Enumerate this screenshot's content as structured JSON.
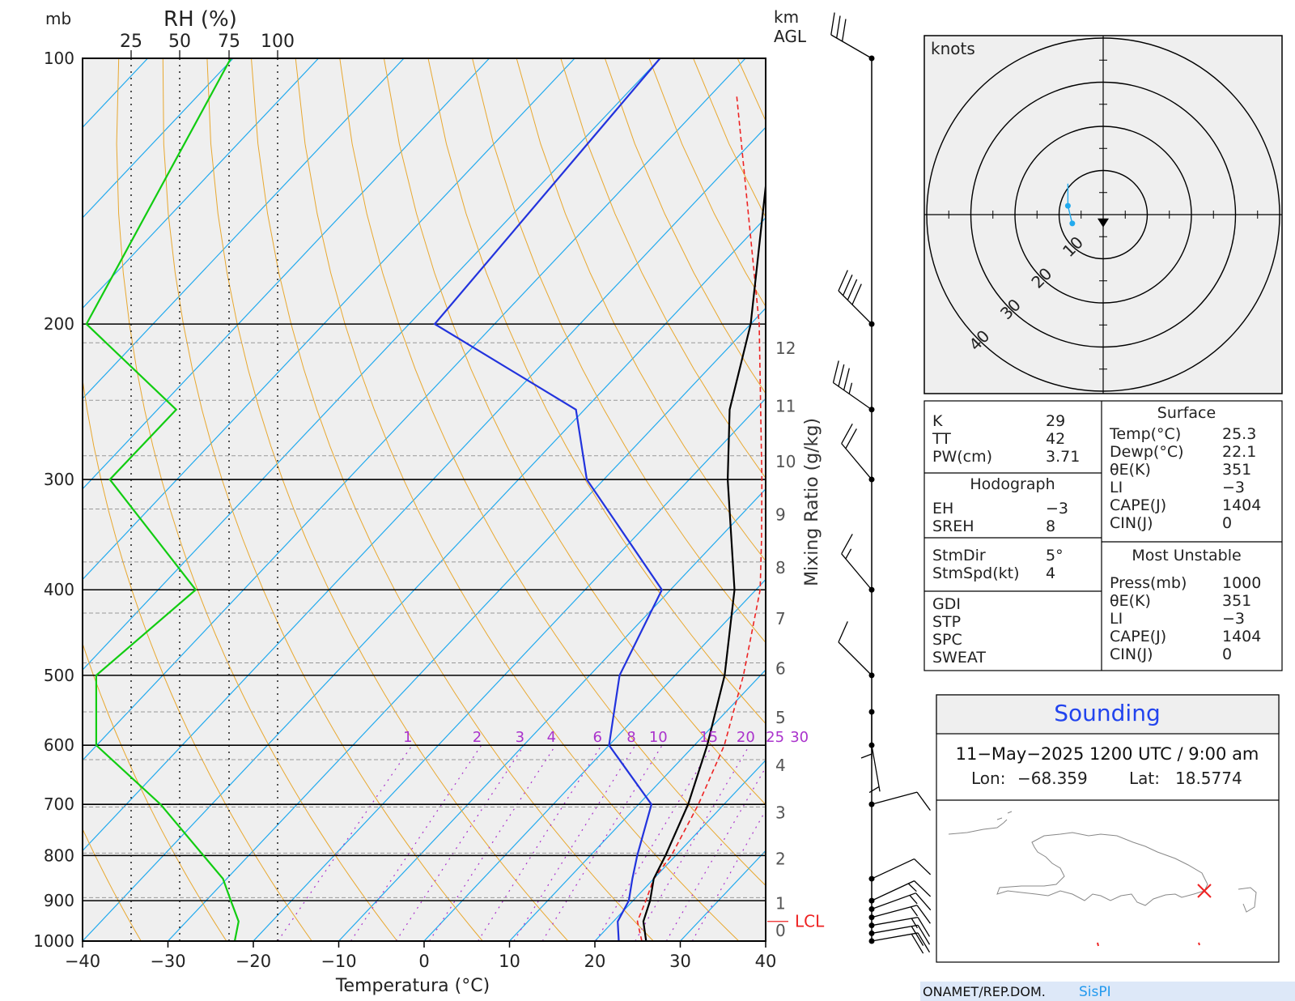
{
  "colors": {
    "temperature": "#000000",
    "dewpoint": "#2233dd",
    "rh": "#11cc11",
    "parcel": "#ee2222",
    "isotherm": "#22aaee",
    "dry_adiabat": "#e8a830",
    "mixing_ratio": "#aa33cc",
    "hodograph": "#22aaee",
    "location_marker": "#ee2222",
    "sounding_title": "#2244ee",
    "footer_bg": "#dde8f8"
  },
  "skewt": {
    "mb_label": "mb",
    "rh_label": "RH (%)",
    "km_label": "km",
    "agl_label": "AGL",
    "xlabel": "Temperatura (°C)",
    "mixing_ratio_label": "Mixing Ratio (g/kg)",
    "lcl_label": "LCL",
    "rh_ticks": [
      "25",
      "50",
      "75",
      "100"
    ],
    "mixing_ratio_ticks": [
      "1",
      "2",
      "3",
      "4",
      "6",
      "8",
      "10",
      "15",
      "20",
      "25",
      "30"
    ]
  },
  "chart_data": [
    {
      "type": "line",
      "title": "",
      "xlabel": "Temperatura (°C)",
      "ylabel": "mb",
      "xlim": [
        -40,
        40
      ],
      "ylim": [
        1000,
        100
      ],
      "y_scale": "log",
      "x_ticks": [
        "−40",
        "−30",
        "−20",
        "−10",
        "0",
        "10",
        "20",
        "30",
        "40"
      ],
      "pressure_ticks": [
        "100",
        "200",
        "300",
        "400",
        "500",
        "600",
        "700",
        "800",
        "900",
        "1000"
      ],
      "height_ticks_km": [
        "0",
        "1",
        "2",
        "3",
        "4",
        "5",
        "6",
        "7",
        "8",
        "9",
        "10",
        "11",
        "12"
      ],
      "grid": true,
      "series": [
        {
          "key": "temperature",
          "points": [
            [
              1000,
              26.0
            ],
            [
              950,
              23.5
            ],
            [
              900,
              22.0
            ],
            [
              850,
              20.0
            ],
            [
              800,
              18.8
            ],
            [
              700,
              15.8
            ],
            [
              600,
              11.5
            ],
            [
              500,
              5.8
            ],
            [
              400,
              -2.5
            ],
            [
              300,
              -15.5
            ],
            [
              250,
              -23.0
            ],
            [
              200,
              -30.0
            ],
            [
              100,
              -56.0
            ]
          ]
        },
        {
          "key": "dewpoint",
          "points": [
            [
              1000,
              22.8
            ],
            [
              950,
              20.5
            ],
            [
              900,
              19.5
            ],
            [
              850,
              17.5
            ],
            [
              800,
              15.5
            ],
            [
              700,
              11.5
            ],
            [
              600,
              0.0
            ],
            [
              500,
              -6.5
            ],
            [
              400,
              -11.0
            ],
            [
              300,
              -32.0
            ],
            [
              250,
              -41.0
            ],
            [
              200,
              -67.0
            ],
            [
              100,
              -70.0
            ]
          ]
        },
        {
          "key": "parcel",
          "points": [
            [
              1000,
              25.5
            ],
            [
              950,
              22.8
            ],
            [
              900,
              21.5
            ],
            [
              850,
              20.0
            ],
            [
              800,
              19.5
            ],
            [
              700,
              17.0
            ],
            [
              600,
              13.5
            ],
            [
              500,
              8.0
            ],
            [
              400,
              0.5
            ],
            [
              350,
              -5.0
            ],
            [
              300,
              -11.5
            ],
            [
              200,
              -29.0
            ],
            [
              110,
              -57.0
            ]
          ]
        },
        {
          "key": "rh",
          "points": [
            [
              1000,
              78
            ],
            [
              950,
              80
            ],
            [
              900,
              76
            ],
            [
              850,
              72
            ],
            [
              800,
              62
            ],
            [
              700,
              40
            ],
            [
              600,
              7
            ],
            [
              500,
              7
            ],
            [
              400,
              58
            ],
            [
              300,
              14
            ],
            [
              250,
              48
            ],
            [
              200,
              2
            ],
            [
              100,
              76
            ]
          ]
        }
      ],
      "lcl_mb": 950
    },
    {
      "type": "scatter",
      "title": "knots",
      "rings": [
        "10",
        "20",
        "30",
        "40"
      ],
      "hodograph_points": [
        [
          -7,
          -2
        ],
        [
          -8,
          2
        ],
        [
          -8,
          6
        ],
        [
          -8,
          7
        ]
      ],
      "storm_motion": [
        0,
        -4
      ]
    }
  ],
  "wind_barbs": [
    {
      "mb": 1000,
      "dir": 80,
      "spd": 20
    },
    {
      "mb": 980,
      "dir": 80,
      "spd": 20
    },
    {
      "mb": 960,
      "dir": 80,
      "spd": 15
    },
    {
      "mb": 940,
      "dir": 75,
      "spd": 15
    },
    {
      "mb": 920,
      "dir": 70,
      "spd": 15
    },
    {
      "mb": 900,
      "dir": 65,
      "spd": 15
    },
    {
      "mb": 850,
      "dir": 65,
      "spd": 10
    },
    {
      "mb": 700,
      "dir": 75,
      "spd": 10
    },
    {
      "mb": 600,
      "dir": 170,
      "spd": 5
    },
    {
      "mb": 550,
      "dir": 180,
      "spd": 5
    },
    {
      "mb": 500,
      "dir": 315,
      "spd": 10
    },
    {
      "mb": 400,
      "dir": 320,
      "spd": 15
    },
    {
      "mb": 300,
      "dir": 320,
      "spd": 20
    },
    {
      "mb": 250,
      "dir": 305,
      "spd": 35
    },
    {
      "mb": 200,
      "dir": 315,
      "spd": 40
    },
    {
      "mb": 100,
      "dir": 300,
      "spd": 30
    }
  ],
  "indices": {
    "left": [
      {
        "label": "K",
        "value": "29"
      },
      {
        "label": "TT",
        "value": "42"
      },
      {
        "label": "PW(cm)",
        "value": "3.71"
      }
    ],
    "hodograph_title": "Hodograph",
    "hodograph": [
      {
        "label": "EH",
        "value": "−3"
      },
      {
        "label": "SREH",
        "value": "8"
      }
    ],
    "storm": [
      {
        "label": "StmDir",
        "value": "5°"
      },
      {
        "label": "StmSpd(kt)",
        "value": "4"
      }
    ],
    "misc": [
      "GDI",
      "STP",
      "SPC",
      "SWEAT"
    ],
    "surface_title": "Surface",
    "surface": [
      {
        "label": "Temp(°C)",
        "value": "25.3"
      },
      {
        "label": "Dewp(°C)",
        "value": "22.1"
      },
      {
        "label": "θE(K)",
        "value": "351"
      },
      {
        "label": "LI",
        "value": "−3"
      },
      {
        "label": "CAPE(J)",
        "value": "1404"
      },
      {
        "label": "CIN(J)",
        "value": "0"
      }
    ],
    "mu_title": "Most Unstable",
    "mu": [
      {
        "label": "Press(mb)",
        "value": "1000"
      },
      {
        "label": "θE(K)",
        "value": "351"
      },
      {
        "label": "LI",
        "value": "−3"
      },
      {
        "label": "CAPE(J)",
        "value": "1404"
      },
      {
        "label": "CIN(J)",
        "value": "0"
      }
    ]
  },
  "sounding": {
    "title": "Sounding",
    "datetime": "11−May−2025 1200 UTC / 9:00 am",
    "lon_label": "Lon:",
    "lon": "−68.359",
    "lat_label": "Lat:",
    "lat": "18.5774"
  },
  "footer": {
    "org": "ONAMET/REP.DOM.",
    "brand": "SisPI"
  }
}
